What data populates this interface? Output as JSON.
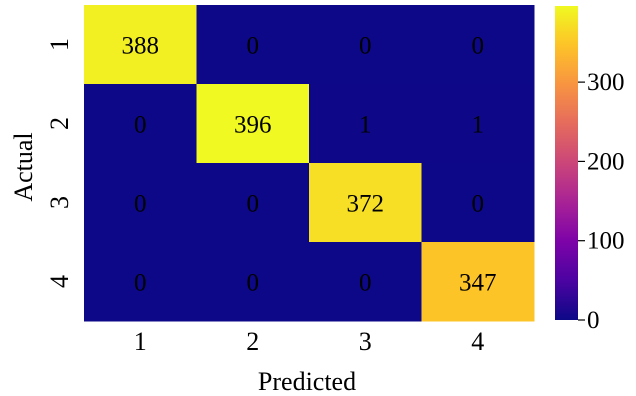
{
  "chart_data": {
    "type": "heatmap",
    "xlabel": "Predicted",
    "ylabel": "Actual",
    "x_categories": [
      "1",
      "2",
      "3",
      "4"
    ],
    "y_categories": [
      "1",
      "2",
      "3",
      "4"
    ],
    "matrix": [
      [
        388,
        0,
        0,
        0
      ],
      [
        0,
        396,
        1,
        1
      ],
      [
        0,
        0,
        372,
        0
      ],
      [
        0,
        0,
        0,
        347
      ]
    ],
    "value_range": [
      0,
      396
    ],
    "colormap": "plasma",
    "low_color": "#0d0887",
    "high_color": "#f0f921",
    "colorbar": {
      "ticks": [
        0,
        100,
        200,
        300
      ],
      "tick_labels": [
        "0",
        "100",
        "200",
        "300"
      ]
    },
    "cell_labels_shown": true,
    "grid": false
  }
}
